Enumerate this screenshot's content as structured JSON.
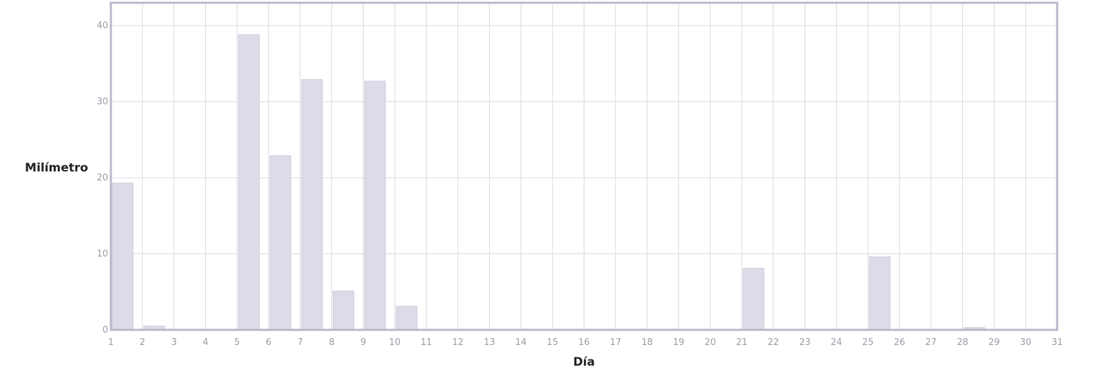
{
  "chart_data": {
    "type": "bar",
    "title": "",
    "xlabel": "Día",
    "ylabel": "Milímetro",
    "x_ticks": [
      1,
      2,
      3,
      4,
      5,
      6,
      7,
      8,
      9,
      10,
      11,
      12,
      13,
      14,
      15,
      16,
      17,
      18,
      19,
      20,
      21,
      22,
      23,
      24,
      25,
      26,
      27,
      28,
      29,
      30,
      31
    ],
    "y_ticks": [
      0,
      10,
      20,
      30,
      40
    ],
    "xlim": [
      1,
      31
    ],
    "ylim": [
      0,
      43
    ],
    "grid": true,
    "legend": "none",
    "bar_color": "#dcdce8",
    "bar_edge_color": "#ccccdc",
    "grid_color": "#d8d8e0",
    "frame_color": "#b7b7cc",
    "data": [
      {
        "day": 1,
        "value": 19.3
      },
      {
        "day": 2,
        "value": 0.5
      },
      {
        "day": 3,
        "value": 0
      },
      {
        "day": 4,
        "value": 0
      },
      {
        "day": 5,
        "value": 38.8
      },
      {
        "day": 6,
        "value": 22.9
      },
      {
        "day": 7,
        "value": 32.9
      },
      {
        "day": 8,
        "value": 5.1
      },
      {
        "day": 9,
        "value": 32.7
      },
      {
        "day": 10,
        "value": 3.1
      },
      {
        "day": 11,
        "value": 0
      },
      {
        "day": 12,
        "value": 0
      },
      {
        "day": 13,
        "value": 0
      },
      {
        "day": 14,
        "value": 0
      },
      {
        "day": 15,
        "value": 0
      },
      {
        "day": 16,
        "value": 0
      },
      {
        "day": 17,
        "value": 0
      },
      {
        "day": 18,
        "value": 0
      },
      {
        "day": 19,
        "value": 0
      },
      {
        "day": 20,
        "value": 0
      },
      {
        "day": 21,
        "value": 8.1
      },
      {
        "day": 22,
        "value": 0
      },
      {
        "day": 23,
        "value": 0
      },
      {
        "day": 24,
        "value": 0
      },
      {
        "day": 25,
        "value": 9.6
      },
      {
        "day": 26,
        "value": 0
      },
      {
        "day": 27,
        "value": 0
      },
      {
        "day": 28,
        "value": 0.3
      },
      {
        "day": 29,
        "value": 0
      },
      {
        "day": 30,
        "value": 0
      }
    ]
  }
}
